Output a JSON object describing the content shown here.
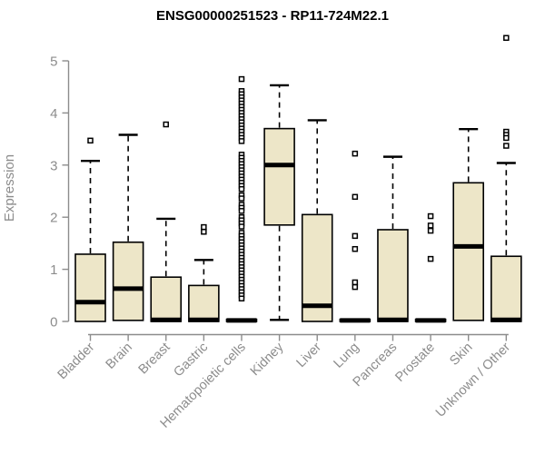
{
  "chart_data": {
    "type": "boxplot",
    "title": "ENSG00000251523 - RP11-724M22.1",
    "ylabel": "Expression",
    "xlabel": "",
    "ylim": [
      0,
      5.6
    ],
    "yticks": [
      0,
      1,
      2,
      3,
      4,
      5
    ],
    "grid": false,
    "legend": "none",
    "box_fill": "#EDE6C8",
    "box_stroke": "#000000",
    "median_color": "#000000",
    "axis_color": "#8C8C8C",
    "label_color": "#8C8C8C",
    "categories": [
      "Bladder",
      "Brain",
      "Breast",
      "Gastric",
      "Hematopoietic cells",
      "Kidney",
      "Liver",
      "Lung",
      "Pancreas",
      "Prostate",
      "Skin",
      "Unknown / Other"
    ],
    "series": [
      {
        "name": "Bladder",
        "whislo": 0,
        "q1": 0,
        "med": 0.37,
        "q3": 1.29,
        "whishi": 3.08,
        "outliers": [
          3.47
        ]
      },
      {
        "name": "Brain",
        "whislo": 0.02,
        "q1": 0.02,
        "med": 0.63,
        "q3": 1.52,
        "whishi": 3.58,
        "outliers": []
      },
      {
        "name": "Breast",
        "whislo": 0,
        "q1": 0,
        "med": 0.03,
        "q3": 0.85,
        "whishi": 1.97,
        "outliers": [
          3.78
        ]
      },
      {
        "name": "Gastric",
        "whislo": 0,
        "q1": 0,
        "med": 0.03,
        "q3": 0.69,
        "whishi": 1.18,
        "outliers": [
          1.81,
          1.72
        ]
      },
      {
        "name": "Hematopoietic cells",
        "whislo": 0,
        "q1": 0,
        "med": 0.02,
        "q3": 0.04,
        "whishi": 0.04,
        "outliers": [
          4.65,
          4.42,
          4.36,
          4.3,
          4.24,
          4.18,
          4.12,
          4.06,
          4.0,
          3.94,
          3.88,
          3.82,
          3.76,
          3.7,
          3.64,
          3.58,
          3.52,
          3.46,
          3.2,
          3.14,
          3.08,
          3.02,
          2.96,
          2.9,
          2.84,
          2.78,
          2.72,
          2.66,
          2.6,
          2.54,
          2.42,
          2.36,
          2.24,
          2.18,
          2.12,
          2.0,
          1.94,
          1.88,
          1.82,
          1.7,
          1.64,
          1.58,
          1.52,
          1.46,
          1.4,
          1.34,
          1.28,
          1.22,
          1.16,
          1.1,
          1.04,
          0.98,
          0.92,
          0.86,
          0.8,
          0.74,
          0.68,
          0.62,
          0.56,
          0.5,
          0.44
        ]
      },
      {
        "name": "Kidney",
        "whislo": 0.03,
        "q1": 1.85,
        "med": 3.0,
        "q3": 3.7,
        "whishi": 4.53,
        "outliers": []
      },
      {
        "name": "Liver",
        "whislo": 0,
        "q1": 0,
        "med": 0.3,
        "q3": 2.05,
        "whishi": 3.86,
        "outliers": []
      },
      {
        "name": "Lung",
        "whislo": 0,
        "q1": 0,
        "med": 0.02,
        "q3": 0.04,
        "whishi": 0.04,
        "outliers": [
          3.22,
          2.39,
          1.64,
          1.39,
          0.75,
          0.66
        ]
      },
      {
        "name": "Pancreas",
        "whislo": 0,
        "q1": 0,
        "med": 0.03,
        "q3": 1.76,
        "whishi": 3.16,
        "outliers": []
      },
      {
        "name": "Prostate",
        "whislo": 0,
        "q1": 0,
        "med": 0.02,
        "q3": 0.04,
        "whishi": 0.04,
        "outliers": [
          2.02,
          1.84,
          1.74,
          1.2
        ]
      },
      {
        "name": "Skin",
        "whislo": 0.02,
        "q1": 0.02,
        "med": 1.44,
        "q3": 2.66,
        "whishi": 3.69,
        "outliers": []
      },
      {
        "name": "Unknown / Other",
        "whislo": 0,
        "q1": 0,
        "med": 0.03,
        "q3": 1.25,
        "whishi": 3.04,
        "outliers": [
          5.44,
          3.64,
          3.58,
          3.52,
          3.37
        ]
      }
    ]
  }
}
